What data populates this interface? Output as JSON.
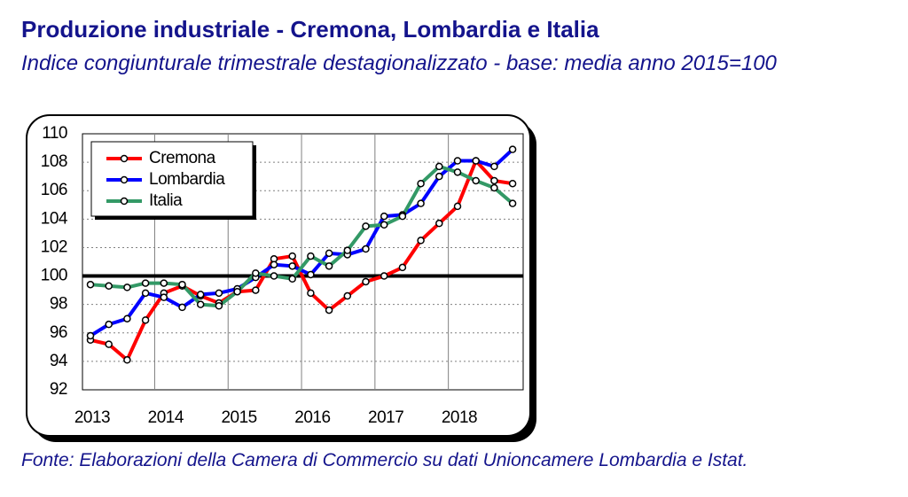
{
  "chart_data": {
    "type": "line",
    "title": "Produzione industriale - Cremona, Lombardia e Italia",
    "subtitle": "Indice congiunturale trimestrale destagionalizzato - base: media anno 2015=100",
    "source": "Fonte: Elaborazioni della Camera di Commercio su dati Unioncamere Lombardia e Istat.",
    "categories": [
      "2013",
      null,
      null,
      null,
      "2014",
      null,
      null,
      null,
      "2015",
      null,
      null,
      null,
      "2016",
      null,
      null,
      null,
      "2017",
      null,
      null,
      null,
      "2018",
      null,
      null,
      null
    ],
    "series": [
      {
        "name": "Cremona",
        "color": "#ff0000",
        "values": [
          95.5,
          95.2,
          94.1,
          96.9,
          98.8,
          99.3,
          98.6,
          98.1,
          98.9,
          99.0,
          101.2,
          101.4,
          98.8,
          97.6,
          98.6,
          99.6,
          100.0,
          100.6,
          102.5,
          103.7,
          104.9,
          108.1,
          106.7,
          106.5
        ]
      },
      {
        "name": "Lombardia",
        "color": "#0000ff",
        "values": [
          95.8,
          96.6,
          97.0,
          98.8,
          98.5,
          97.8,
          98.7,
          98.8,
          99.1,
          99.9,
          100.8,
          100.7,
          100.1,
          101.6,
          101.5,
          101.9,
          104.2,
          104.3,
          105.1,
          107.0,
          108.1,
          108.1,
          107.7,
          108.9
        ]
      },
      {
        "name": "Italia",
        "color": "#339966",
        "values": [
          99.4,
          99.3,
          99.2,
          99.5,
          99.5,
          99.4,
          98.0,
          97.9,
          98.9,
          100.2,
          100.0,
          99.8,
          101.4,
          100.7,
          101.8,
          103.5,
          103.6,
          104.2,
          106.5,
          107.7,
          107.3,
          106.7,
          106.2,
          105.1
        ]
      }
    ],
    "baseline": 100,
    "ylim": [
      92,
      110
    ],
    "yticks": [
      92,
      94,
      96,
      98,
      100,
      102,
      104,
      106,
      108,
      110
    ],
    "grid": true,
    "legend": "upper-left"
  }
}
